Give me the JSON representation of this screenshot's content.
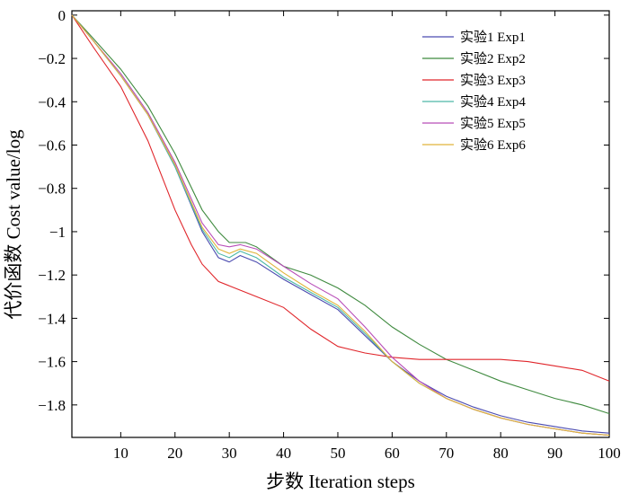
{
  "chart_data": {
    "type": "line",
    "title": "",
    "xlabel": "步数 Iteration steps",
    "ylabel": "代价函数 Cost value/log",
    "xlim": [
      1,
      100
    ],
    "ylim": [
      -1.95,
      0.02
    ],
    "xticks": [
      10,
      20,
      30,
      40,
      50,
      60,
      70,
      80,
      90,
      100
    ],
    "xtick_labels": [
      "10",
      "20",
      "30",
      "40",
      "50",
      "60",
      "70",
      "80",
      "90",
      "100"
    ],
    "yticks": [
      0,
      -0.2,
      -0.4,
      -0.6,
      -0.8,
      -1,
      -1.2,
      -1.4,
      -1.6,
      -1.8
    ],
    "ytick_labels": [
      "0",
      "−0.2",
      "−0.4",
      "−0.6",
      "−0.8",
      "−1",
      "−1.2",
      "−1.4",
      "−1.6",
      "−1.8"
    ],
    "grid": false,
    "legend_position": "top-right",
    "series": [
      {
        "name": "实验1 Exp1",
        "color": "#4b4bb0",
        "x": [
          1,
          5,
          10,
          15,
          20,
          25,
          28,
          30,
          32,
          35,
          40,
          45,
          50,
          55,
          60,
          65,
          70,
          75,
          80,
          85,
          90,
          95,
          100
        ],
        "y": [
          0,
          -0.12,
          -0.28,
          -0.46,
          -0.7,
          -1.0,
          -1.12,
          -1.14,
          -1.11,
          -1.14,
          -1.22,
          -1.29,
          -1.36,
          -1.48,
          -1.6,
          -1.69,
          -1.76,
          -1.81,
          -1.85,
          -1.88,
          -1.9,
          -1.92,
          -1.93
        ]
      },
      {
        "name": "实验2 Exp2",
        "color": "#3f8a3f",
        "x": [
          1,
          5,
          10,
          15,
          20,
          25,
          28,
          30,
          33,
          35,
          40,
          45,
          50,
          55,
          60,
          65,
          70,
          75,
          80,
          85,
          90,
          95,
          100
        ],
        "y": [
          0,
          -0.11,
          -0.25,
          -0.42,
          -0.64,
          -0.9,
          -1.0,
          -1.05,
          -1.05,
          -1.07,
          -1.16,
          -1.2,
          -1.26,
          -1.34,
          -1.44,
          -1.52,
          -1.59,
          -1.64,
          -1.69,
          -1.73,
          -1.77,
          -1.8,
          -1.84
        ]
      },
      {
        "name": "实验3 Exp3",
        "color": "#e0262b",
        "x": [
          1,
          5,
          10,
          15,
          20,
          23,
          25,
          28,
          30,
          35,
          40,
          45,
          50,
          55,
          60,
          65,
          70,
          75,
          80,
          85,
          90,
          95,
          100
        ],
        "y": [
          0,
          -0.15,
          -0.33,
          -0.58,
          -0.9,
          -1.06,
          -1.15,
          -1.23,
          -1.25,
          -1.3,
          -1.35,
          -1.45,
          -1.53,
          -1.56,
          -1.58,
          -1.59,
          -1.59,
          -1.59,
          -1.59,
          -1.6,
          -1.62,
          -1.64,
          -1.69
        ]
      },
      {
        "name": "实验4 Exp4",
        "color": "#4db8a8",
        "x": [
          1,
          5,
          10,
          15,
          20,
          25,
          28,
          30,
          32,
          35,
          40,
          45,
          50,
          55,
          60,
          65,
          70,
          75,
          80,
          85,
          90,
          95,
          100
        ],
        "y": [
          0,
          -0.12,
          -0.28,
          -0.46,
          -0.7,
          -0.99,
          -1.1,
          -1.12,
          -1.09,
          -1.12,
          -1.21,
          -1.28,
          -1.35,
          -1.47,
          -1.6,
          -1.7,
          -1.77,
          -1.82,
          -1.86,
          -1.89,
          -1.91,
          -1.93,
          -1.94
        ]
      },
      {
        "name": "实验5 Exp5",
        "color": "#b84db8",
        "x": [
          1,
          5,
          10,
          15,
          20,
          25,
          28,
          30,
          32,
          35,
          40,
          45,
          50,
          55,
          60,
          65,
          70,
          75,
          80,
          85,
          90,
          95,
          100
        ],
        "y": [
          0,
          -0.12,
          -0.27,
          -0.45,
          -0.68,
          -0.96,
          -1.06,
          -1.07,
          -1.06,
          -1.08,
          -1.16,
          -1.24,
          -1.31,
          -1.44,
          -1.58,
          -1.69,
          -1.77,
          -1.82,
          -1.86,
          -1.89,
          -1.91,
          -1.93,
          -1.94
        ]
      },
      {
        "name": "实验6 Exp6",
        "color": "#e0b43a",
        "x": [
          1,
          5,
          10,
          15,
          20,
          25,
          28,
          30,
          32,
          35,
          40,
          45,
          50,
          55,
          60,
          65,
          70,
          75,
          80,
          85,
          90,
          95,
          100
        ],
        "y": [
          0,
          -0.12,
          -0.28,
          -0.46,
          -0.69,
          -0.98,
          -1.08,
          -1.1,
          -1.08,
          -1.1,
          -1.19,
          -1.27,
          -1.34,
          -1.46,
          -1.6,
          -1.7,
          -1.77,
          -1.82,
          -1.86,
          -1.89,
          -1.91,
          -1.93,
          -1.94
        ]
      }
    ]
  }
}
